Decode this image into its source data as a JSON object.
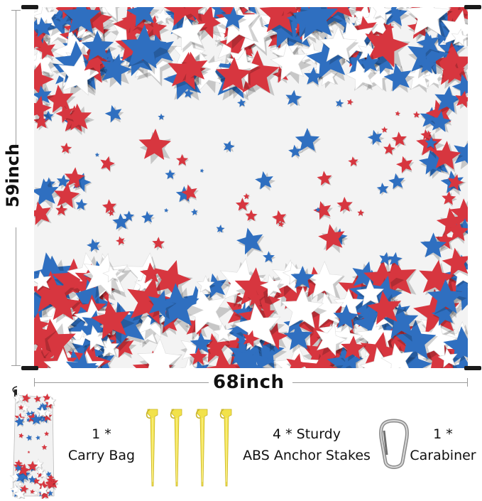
{
  "dimensions": {
    "width": "68inch",
    "height": "59inch"
  },
  "accessories": {
    "bag": {
      "qty": "1 *",
      "label": "Carry Bag"
    },
    "stakes": {
      "qty": "4 * Sturdy",
      "label": "ABS Anchor Stakes"
    },
    "carabiner": {
      "qty": "1 *",
      "label": "Carabiner"
    }
  },
  "colors": {
    "star_red": "#d7363f",
    "star_blue": "#2f6fc0",
    "star_white": "#ffffff",
    "stake_yellow": "#f2e24a",
    "background": "#f3f3f3"
  }
}
